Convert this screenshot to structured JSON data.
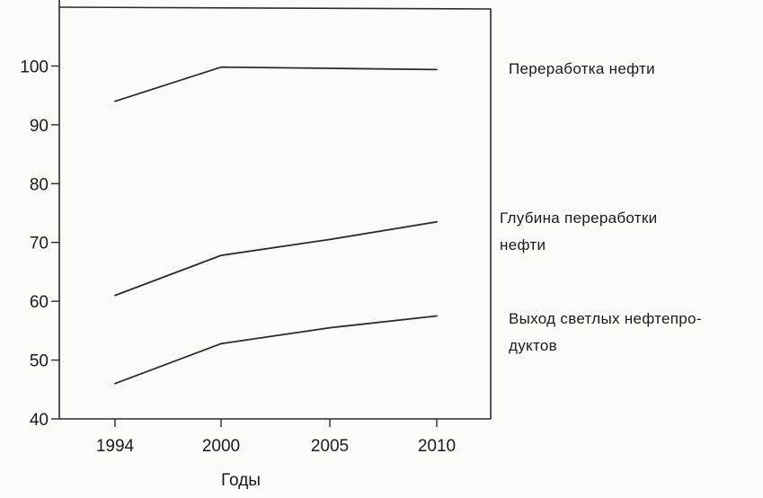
{
  "chart_data": {
    "type": "line",
    "title": "",
    "xlabel": "Годы",
    "ylabel": "",
    "x": [
      1994,
      2000,
      2005,
      2010
    ],
    "x_tick_labels": [
      "1994",
      "2000",
      "2005",
      "2010"
    ],
    "ylim": [
      40,
      110
    ],
    "y_ticks": [
      40,
      50,
      60,
      70,
      80,
      90,
      100
    ],
    "y_tick_labels": [
      "40",
      "50",
      "60",
      "70",
      "80",
      "90",
      "100"
    ],
    "grid": false,
    "legend": "labels placed at right of plot",
    "series": [
      {
        "name": "Переработка нефти",
        "label_lines": [
          "Переработка нефти"
        ],
        "values": [
          94,
          99.8,
          99.6,
          99.4
        ]
      },
      {
        "name": "Глубина переработки нефти",
        "label_lines": [
          "Глубина переработки",
          "нефти"
        ],
        "values": [
          61,
          67.8,
          70.5,
          73.5
        ]
      },
      {
        "name": "Выход светлых нефтепродуктов",
        "label_lines": [
          "Выход светлых нефтепро-",
          "дуктов"
        ],
        "values": [
          46,
          52.8,
          55.5,
          57.5
        ]
      }
    ],
    "colors": {
      "line": "#2b2b2b",
      "background": "#fbfbf8"
    }
  }
}
